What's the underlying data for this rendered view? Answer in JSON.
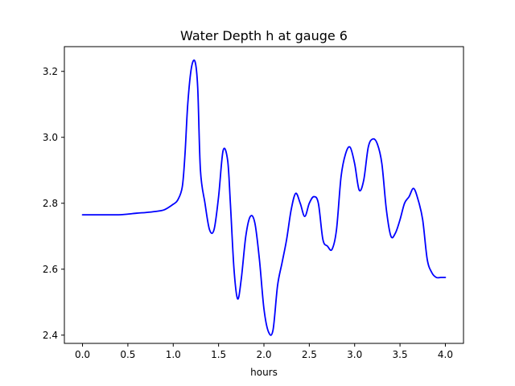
{
  "chart_data": {
    "type": "line",
    "title": "Water Depth h at gauge 6",
    "xlabel": "hours",
    "ylabel": "",
    "xlim": [
      -0.2,
      4.2
    ],
    "ylim": [
      2.375,
      3.275
    ],
    "xticks": [
      0.0,
      0.5,
      1.0,
      1.5,
      2.0,
      2.5,
      3.0,
      3.5,
      4.0
    ],
    "xtick_labels": [
      "0.0",
      "0.5",
      "1.0",
      "1.5",
      "2.0",
      "2.5",
      "3.0",
      "3.5",
      "4.0"
    ],
    "yticks": [
      2.4,
      2.6,
      2.8,
      3.0,
      3.2
    ],
    "ytick_labels": [
      "2.4",
      "2.6",
      "2.8",
      "3.0",
      "3.2"
    ],
    "grid": false,
    "series": [
      {
        "color": "#0000ff",
        "x": [
          0.0,
          0.2,
          0.4,
          0.5,
          0.6,
          0.7,
          0.8,
          0.9,
          1.0,
          1.05,
          1.1,
          1.13,
          1.16,
          1.2,
          1.24,
          1.27,
          1.3,
          1.35,
          1.4,
          1.45,
          1.5,
          1.55,
          1.6,
          1.63,
          1.67,
          1.71,
          1.75,
          1.8,
          1.85,
          1.9,
          1.95,
          2.0,
          2.05,
          2.1,
          2.15,
          2.2,
          2.25,
          2.3,
          2.35,
          2.4,
          2.45,
          2.5,
          2.55,
          2.6,
          2.65,
          2.7,
          2.75,
          2.8,
          2.85,
          2.9,
          2.95,
          3.0,
          3.05,
          3.1,
          3.15,
          3.2,
          3.25,
          3.3,
          3.35,
          3.4,
          3.45,
          3.5,
          3.55,
          3.6,
          3.65,
          3.7,
          3.75,
          3.8,
          3.85,
          3.9,
          3.95,
          4.0
        ],
        "y": [
          2.765,
          2.765,
          2.765,
          2.767,
          2.77,
          2.772,
          2.775,
          2.78,
          2.797,
          2.81,
          2.85,
          2.95,
          3.1,
          3.21,
          3.23,
          3.15,
          2.9,
          2.8,
          2.72,
          2.72,
          2.82,
          2.96,
          2.93,
          2.8,
          2.6,
          2.51,
          2.57,
          2.7,
          2.76,
          2.74,
          2.63,
          2.48,
          2.41,
          2.415,
          2.55,
          2.62,
          2.69,
          2.78,
          2.83,
          2.8,
          2.76,
          2.8,
          2.82,
          2.8,
          2.69,
          2.67,
          2.66,
          2.72,
          2.88,
          2.95,
          2.97,
          2.92,
          2.84,
          2.87,
          2.97,
          2.995,
          2.98,
          2.92,
          2.78,
          2.7,
          2.71,
          2.75,
          2.8,
          2.82,
          2.845,
          2.81,
          2.75,
          2.63,
          2.59,
          2.575,
          2.575,
          2.575
        ]
      }
    ]
  }
}
